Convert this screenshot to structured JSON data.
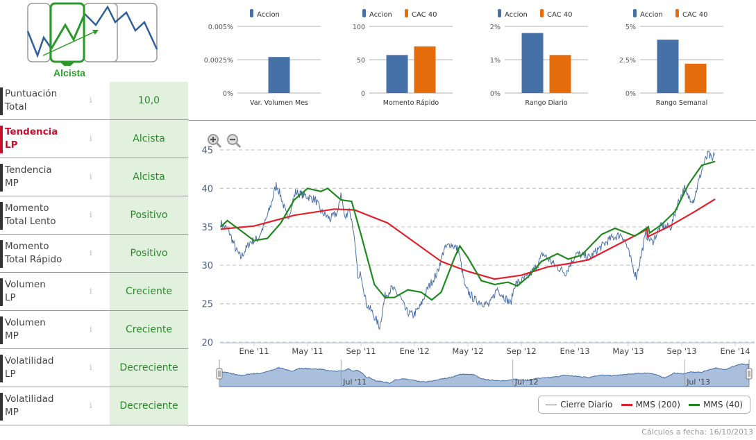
{
  "signal": {
    "label": "Alcista"
  },
  "rows": [
    {
      "label1": "Puntuación",
      "label2": "Total",
      "value": "10,0",
      "selected": false
    },
    {
      "label1": "Tendencia",
      "label2": "LP",
      "value": "Alcista",
      "selected": true
    },
    {
      "label1": "Tendencia",
      "label2": "MP",
      "value": "Alcista",
      "selected": false
    },
    {
      "label1": "Momento",
      "label2": "Total Lento",
      "value": "Positivo",
      "selected": false
    },
    {
      "label1": "Momento",
      "label2": "Total Rápido",
      "value": "Positivo",
      "selected": false
    },
    {
      "label1": "Volumen",
      "label2": "LP",
      "value": "Creciente",
      "selected": false
    },
    {
      "label1": "Volumen",
      "label2": "MP",
      "value": "Creciente",
      "selected": false
    },
    {
      "label1": "Volatilidad",
      "label2": "LP",
      "value": "Decreciente",
      "selected": false
    },
    {
      "label1": "Volatilidad",
      "label2": "MP",
      "value": "Decreciente",
      "selected": false
    }
  ],
  "info_glyph": "i",
  "colors": {
    "accion": "#4671a8",
    "cac40": "#e46c0a",
    "close": "#4a6fa5",
    "mms200": "#e0202a",
    "mms40": "#1e8a1e",
    "good": "#2a8a2a",
    "selected": "#c8102e"
  },
  "chart_data": [
    {
      "type": "bar",
      "title": "Var. Volumen Mes",
      "series": [
        {
          "name": "Accion",
          "value": 0.0027
        }
      ],
      "ylim": [
        0,
        0.005
      ],
      "ticks": [
        "0%",
        "0.0025%",
        "0.005%"
      ],
      "tick_values": [
        0,
        0.0025,
        0.005
      ]
    },
    {
      "type": "bar",
      "title": "Momento Rápido",
      "series": [
        {
          "name": "Accion",
          "value": 57
        },
        {
          "name": "CAC 40",
          "value": 70
        }
      ],
      "ylim": [
        0,
        100
      ],
      "ticks": [
        "0",
        "50",
        "100"
      ],
      "tick_values": [
        0,
        50,
        100
      ]
    },
    {
      "type": "bar",
      "title": "Rango Diario",
      "series": [
        {
          "name": "Accion",
          "value": 1.8
        },
        {
          "name": "CAC 40",
          "value": 1.14
        }
      ],
      "ylim": [
        0,
        2
      ],
      "ticks": [
        "0%",
        "1%",
        "2%"
      ],
      "tick_values": [
        0,
        1,
        2
      ]
    },
    {
      "type": "bar",
      "title": "Rango Semanal",
      "series": [
        {
          "name": "Accion",
          "value": 4.0
        },
        {
          "name": "CAC 40",
          "value": 2.2
        }
      ],
      "ylim": [
        0,
        5
      ],
      "ticks": [
        "0%",
        "2.5%",
        "5%"
      ],
      "tick_values": [
        0,
        2.5,
        5
      ]
    },
    {
      "type": "line",
      "x_unit": "months since Jan 2011",
      "xlim": [
        -2.55,
        36
      ],
      "ylim": [
        20,
        45
      ],
      "yticks": [
        20,
        25,
        30,
        35,
        40,
        45
      ],
      "xticks": [
        {
          "m": 0,
          "label": "Ene '11"
        },
        {
          "m": 4,
          "label": "May '11"
        },
        {
          "m": 8,
          "label": "Sep '11"
        },
        {
          "m": 12,
          "label": "Ene '12"
        },
        {
          "m": 16,
          "label": "May '12"
        },
        {
          "m": 20,
          "label": "Sep '12"
        },
        {
          "m": 24,
          "label": "Ene '13"
        },
        {
          "m": 28,
          "label": "May '13"
        },
        {
          "m": 32,
          "label": "Sep '13"
        },
        {
          "m": 36,
          "label": "Ene '14"
        }
      ],
      "navigator_labels": [
        {
          "m": 6,
          "label": "Jul '11"
        },
        {
          "m": 18,
          "label": "Jul '12"
        },
        {
          "m": 30,
          "label": "Jul '13"
        }
      ],
      "series": [
        {
          "name": "Cierre Diario",
          "points": [
            [
              -2.5,
              35.5
            ],
            [
              -1.9,
              34.5
            ],
            [
              -1.35,
              32
            ],
            [
              -1,
              31
            ],
            [
              -0.3,
              33
            ],
            [
              0.3,
              33.5
            ],
            [
              0.7,
              35
            ],
            [
              1.2,
              37.5
            ],
            [
              1.66,
              40.5
            ],
            [
              2,
              39
            ],
            [
              2.5,
              36
            ],
            [
              3.1,
              39.5
            ],
            [
              3.9,
              39
            ],
            [
              4.6,
              38.5
            ],
            [
              5,
              37
            ],
            [
              5.7,
              36
            ],
            [
              6.3,
              37
            ],
            [
              6.5,
              39.5
            ],
            [
              6.8,
              36
            ],
            [
              7.1,
              37.5
            ],
            [
              7.4,
              35
            ],
            [
              7.8,
              28
            ],
            [
              8,
              29
            ],
            [
              8.4,
              25
            ],
            [
              8.8,
              24
            ],
            [
              9.4,
              22
            ],
            [
              9.8,
              26
            ],
            [
              10.3,
              27
            ],
            [
              10.9,
              26
            ],
            [
              11.4,
              24
            ],
            [
              11.9,
              23.5
            ],
            [
              12.4,
              24.5
            ],
            [
              13,
              27
            ],
            [
              13.7,
              29
            ],
            [
              14.2,
              32
            ],
            [
              14.7,
              32.8
            ],
            [
              15.3,
              32
            ],
            [
              15.8,
              27
            ],
            [
              16.5,
              25.5
            ],
            [
              17.6,
              24.8
            ],
            [
              18.2,
              27
            ],
            [
              18.4,
              26.5
            ],
            [
              19.2,
              25
            ],
            [
              19.5,
              27.5
            ],
            [
              20.5,
              28.5
            ],
            [
              21.2,
              30
            ],
            [
              21.6,
              31.5
            ],
            [
              22.5,
              30
            ],
            [
              23.3,
              29
            ],
            [
              24.1,
              31.5
            ],
            [
              25.1,
              31
            ],
            [
              25.7,
              32
            ],
            [
              26.7,
              33.5
            ],
            [
              27.5,
              34
            ],
            [
              27.8,
              33
            ],
            [
              28.3,
              30
            ],
            [
              28.6,
              28.5
            ],
            [
              28.8,
              30
            ],
            [
              29.3,
              34
            ],
            [
              29.8,
              33
            ],
            [
              30.4,
              35
            ],
            [
              31.2,
              35
            ],
            [
              31.7,
              38
            ],
            [
              32.2,
              40
            ],
            [
              32.4,
              39
            ],
            [
              32.9,
              38.5
            ],
            [
              33.6,
              43
            ],
            [
              34,
              44.5
            ],
            [
              34.3,
              43.5
            ],
            [
              34.5,
              45
            ]
          ]
        },
        {
          "name": "MMS (200)",
          "points": [
            [
              -2.5,
              34.7
            ],
            [
              0,
              35.1
            ],
            [
              3,
              36.5
            ],
            [
              6,
              37.3
            ],
            [
              7.5,
              37.2
            ],
            [
              10,
              35.5
            ],
            [
              12,
              33
            ],
            [
              14,
              30.5
            ],
            [
              16,
              29.2
            ],
            [
              18,
              28.2
            ],
            [
              20,
              28.7
            ],
            [
              22,
              29.8
            ],
            [
              23.5,
              30.2
            ],
            [
              25,
              30.7
            ],
            [
              27,
              32.5
            ],
            [
              29,
              34.3
            ],
            [
              29.4,
              34.7
            ],
            [
              29.45,
              33.7
            ],
            [
              31,
              35
            ],
            [
              33,
              37
            ],
            [
              34.5,
              38.6
            ]
          ]
        },
        {
          "name": "MMS (40)",
          "points": [
            [
              -2.5,
              35
            ],
            [
              -2,
              35.8
            ],
            [
              -1,
              34.5
            ],
            [
              0,
              33.2
            ],
            [
              1,
              33.5
            ],
            [
              2,
              35.5
            ],
            [
              3,
              38.5
            ],
            [
              4,
              40
            ],
            [
              5,
              39.6
            ],
            [
              5.5,
              40
            ],
            [
              6.5,
              38.5
            ],
            [
              7.3,
              38.3
            ],
            [
              8,
              34
            ],
            [
              9,
              27.5
            ],
            [
              9.8,
              25.8
            ],
            [
              10.5,
              25.8
            ],
            [
              11.5,
              26.8
            ],
            [
              12.5,
              26.5
            ],
            [
              13.3,
              25.5
            ],
            [
              14,
              26.5
            ],
            [
              15,
              31
            ],
            [
              15.4,
              32.5
            ],
            [
              16,
              31
            ],
            [
              17,
              28
            ],
            [
              18,
              27.5
            ],
            [
              19,
              27.8
            ],
            [
              19.7,
              27.3
            ],
            [
              20.5,
              28.5
            ],
            [
              21.5,
              30.5
            ],
            [
              22.7,
              31.5
            ],
            [
              23.5,
              30.8
            ],
            [
              24.5,
              31.3
            ],
            [
              26,
              34
            ],
            [
              27,
              34.8
            ],
            [
              28.5,
              33.8
            ],
            [
              29.5,
              35
            ],
            [
              29.6,
              34.2
            ],
            [
              30.5,
              35.3
            ],
            [
              31.5,
              37
            ],
            [
              32.5,
              40.5
            ],
            [
              33.5,
              43
            ],
            [
              34.5,
              43.5
            ]
          ]
        }
      ]
    }
  ],
  "legend": {
    "close": "Cierre Diario",
    "mms200": "MMS (200)",
    "mms40": "MMS (40)"
  },
  "footer": "Cálculos a fecha: 16/10/2013"
}
